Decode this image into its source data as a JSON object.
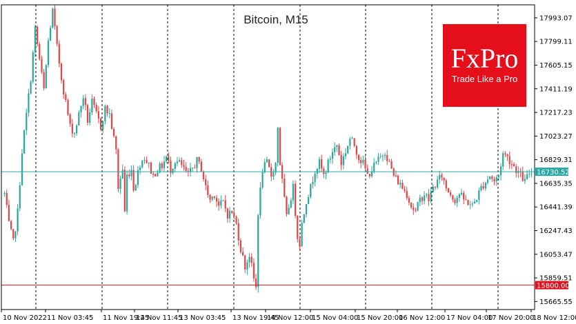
{
  "chart_data": {
    "type": "candlestick",
    "title": "Bitcoin, M15",
    "ylim": [
      15600,
      18100
    ],
    "yticks": [
      "17993.07",
      "17799.11",
      "17605.15",
      "17411.19",
      "17217.23",
      "17023.27",
      "16829.31",
      "16635.35",
      "16441.39",
      "16247.43",
      "16053.47",
      "15859.51",
      "15665.55"
    ],
    "xticks": [
      "10 Nov 2022",
      "11 Nov 03:45",
      "11 Nov 19:45",
      "12 Nov 11:45",
      "13 Nov 03:45",
      "13 Nov 19:45",
      "14 Nov 12:00",
      "15 Nov 04:00",
      "15 Nov 20:00",
      "16 Nov 12:00",
      "17 Nov 04:00",
      "17 Nov 20:00",
      "18 Nov 12:00"
    ],
    "current_price": {
      "value": 16730.52,
      "label": "16730.52",
      "color": "#2aa7a7"
    },
    "support_level": {
      "value": 15800.0,
      "label": "15800.00",
      "color": "#e0101e"
    },
    "bull_color": "#2aa79b",
    "bear_color": "#e14545",
    "grid": "vertical-dashed",
    "path": [
      [
        0,
        16550
      ],
      [
        2,
        16300
      ],
      [
        4,
        16150
      ],
      [
        6,
        16400
      ],
      [
        8,
        16900
      ],
      [
        10,
        17200
      ],
      [
        12,
        17500
      ],
      [
        14,
        17900
      ],
      [
        16,
        17650
      ],
      [
        18,
        17400
      ],
      [
        20,
        17800
      ],
      [
        22,
        18050
      ],
      [
        24,
        17750
      ],
      [
        26,
        17500
      ],
      [
        28,
        17300
      ],
      [
        30,
        17100
      ],
      [
        32,
        17050
      ],
      [
        34,
        17200
      ],
      [
        36,
        17350
      ],
      [
        38,
        17150
      ],
      [
        40,
        17300
      ],
      [
        42,
        17200
      ],
      [
        44,
        17100
      ],
      [
        46,
        17250
      ],
      [
        48,
        17200
      ],
      [
        50,
        17000
      ],
      [
        51,
        16900
      ],
      [
        52,
        16600
      ],
      [
        54,
        16750
      ],
      [
        55,
        16400
      ],
      [
        56,
        16700
      ],
      [
        58,
        16750
      ],
      [
        59,
        16600
      ],
      [
        60,
        16650
      ],
      [
        62,
        16800
      ],
      [
        64,
        16850
      ],
      [
        66,
        16780
      ],
      [
        68,
        16700
      ],
      [
        70,
        16750
      ],
      [
        72,
        16780
      ],
      [
        74,
        16850
      ],
      [
        76,
        16750
      ],
      [
        78,
        16820
      ],
      [
        80,
        16800
      ],
      [
        82,
        16750
      ],
      [
        84,
        16700
      ],
      [
        86,
        16760
      ],
      [
        88,
        16820
      ],
      [
        90,
        16760
      ],
      [
        92,
        16600
      ],
      [
        94,
        16500
      ],
      [
        96,
        16550
      ],
      [
        98,
        16450
      ],
      [
        100,
        16480
      ],
      [
        102,
        16380
      ],
      [
        104,
        16400
      ],
      [
        106,
        16300
      ],
      [
        108,
        16100
      ],
      [
        110,
        15950
      ],
      [
        112,
        16050
      ],
      [
        114,
        15850
      ],
      [
        115,
        15780
      ],
      [
        116,
        16400
      ],
      [
        118,
        16750
      ],
      [
        120,
        16800
      ],
      [
        122,
        16700
      ],
      [
        124,
        16800
      ],
      [
        125,
        17100
      ],
      [
        126,
        16800
      ],
      [
        128,
        16500
      ],
      [
        129,
        16350
      ],
      [
        130,
        16450
      ],
      [
        132,
        16600
      ],
      [
        134,
        16200
      ],
      [
        135,
        16150
      ],
      [
        136,
        16300
      ],
      [
        138,
        16500
      ],
      [
        140,
        16600
      ],
      [
        142,
        16750
      ],
      [
        144,
        16800
      ],
      [
        146,
        16700
      ],
      [
        148,
        16800
      ],
      [
        150,
        16900
      ],
      [
        152,
        16950
      ],
      [
        154,
        16800
      ],
      [
        156,
        16900
      ],
      [
        158,
        17000
      ],
      [
        160,
        16950
      ],
      [
        162,
        16850
      ],
      [
        164,
        16800
      ],
      [
        166,
        16700
      ],
      [
        168,
        16750
      ],
      [
        170,
        16800
      ],
      [
        172,
        16850
      ],
      [
        174,
        16900
      ],
      [
        176,
        16800
      ],
      [
        178,
        16700
      ],
      [
        180,
        16650
      ],
      [
        182,
        16600
      ],
      [
        184,
        16550
      ],
      [
        186,
        16450
      ],
      [
        188,
        16400
      ],
      [
        190,
        16500
      ],
      [
        192,
        16550
      ],
      [
        194,
        16500
      ],
      [
        196,
        16600
      ],
      [
        198,
        16650
      ],
      [
        200,
        16700
      ],
      [
        202,
        16600
      ],
      [
        204,
        16550
      ],
      [
        206,
        16500
      ],
      [
        208,
        16550
      ],
      [
        210,
        16500
      ],
      [
        212,
        16480
      ],
      [
        214,
        16450
      ],
      [
        216,
        16520
      ],
      [
        218,
        16600
      ],
      [
        220,
        16650
      ],
      [
        222,
        16700
      ],
      [
        224,
        16650
      ],
      [
        226,
        16700
      ],
      [
        228,
        16880
      ],
      [
        230,
        16850
      ],
      [
        232,
        16800
      ],
      [
        234,
        16750
      ],
      [
        236,
        16700
      ],
      [
        238,
        16650
      ],
      [
        240,
        16720
      ],
      [
        242,
        16730
      ]
    ],
    "candle_count": 242
  }
}
